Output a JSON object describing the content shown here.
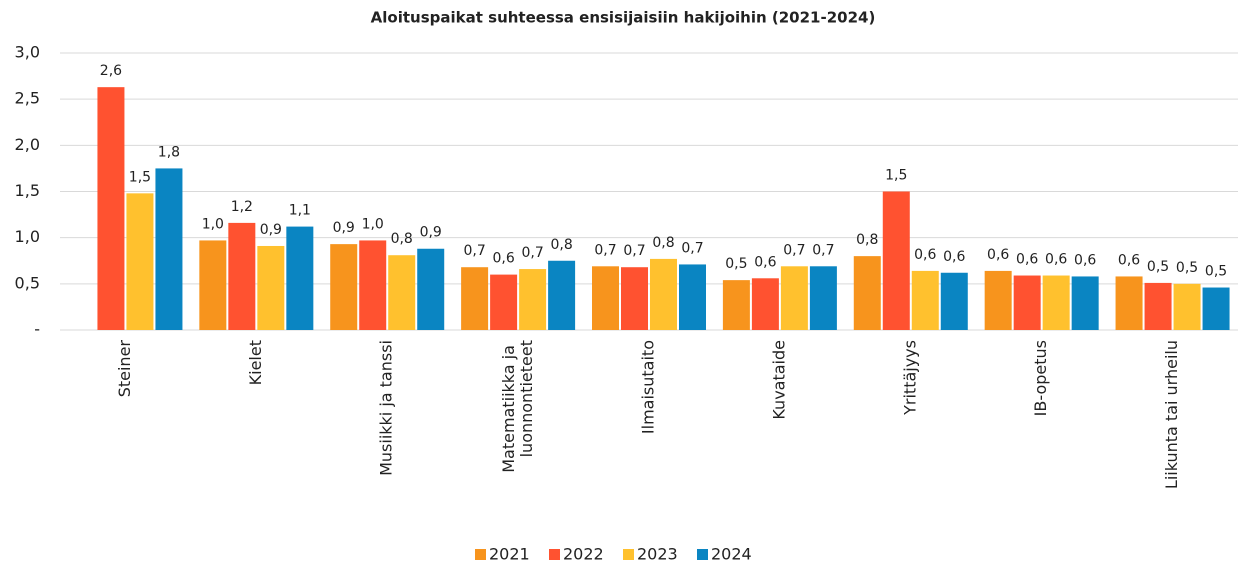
{
  "chart_data": {
    "type": "bar",
    "title": "Aloituspaikat suhteessa ensisijaisiin hakijoihin (2021-2024)",
    "categories": [
      "Steiner",
      "Kielet",
      "Musiikki ja tanssi",
      "Matematiikka ja luonnontieteet",
      "Ilmaisutaito",
      "Kuvataide",
      "Yrittäjyys",
      "IB-opetus",
      "Liikunta tai urheilu"
    ],
    "series": [
      {
        "name": "2021",
        "color": "#f7941d",
        "values": [
          null,
          0.97,
          0.93,
          0.68,
          0.69,
          0.54,
          0.8,
          0.64,
          0.58
        ],
        "value_labels": [
          null,
          "1,0",
          "0,9",
          "0,7",
          "0,7",
          "0,5",
          "0,8",
          "0,6",
          "0,6"
        ]
      },
      {
        "name": "2022",
        "color": "#ff5230",
        "values": [
          2.63,
          1.16,
          0.97,
          0.6,
          0.68,
          0.56,
          1.5,
          0.59,
          0.51
        ],
        "value_labels": [
          "2,6",
          "1,2",
          "1,0",
          "0,6",
          "0,7",
          "0,6",
          "1,5",
          "0,6",
          "0,5"
        ]
      },
      {
        "name": "2023",
        "color": "#ffc12e",
        "values": [
          1.48,
          0.91,
          0.81,
          0.66,
          0.77,
          0.69,
          0.64,
          0.59,
          0.5
        ],
        "value_labels": [
          "1,5",
          "0,9",
          "0,8",
          "0,7",
          "0,8",
          "0,7",
          "0,6",
          "0,6",
          "0,5"
        ]
      },
      {
        "name": "2024",
        "color": "#0a85c2",
        "values": [
          1.75,
          1.12,
          0.88,
          0.75,
          0.71,
          0.69,
          0.62,
          0.58,
          0.46
        ],
        "value_labels": [
          "1,8",
          "1,1",
          "0,9",
          "0,8",
          "0,7",
          "0,7",
          "0,6",
          "0,6",
          "0,5"
        ]
      }
    ],
    "ylim": [
      0,
      3
    ],
    "yticks": [
      {
        "value": 0,
        "label": "-"
      },
      {
        "value": 0.5,
        "label": "0,5"
      },
      {
        "value": 1,
        "label": "1,0"
      },
      {
        "value": 1.5,
        "label": "1,5"
      },
      {
        "value": 2,
        "label": "2,0"
      },
      {
        "value": 2.5,
        "label": "2,5"
      },
      {
        "value": 3,
        "label": "3,0"
      }
    ],
    "grid": true,
    "legend": "bottom"
  }
}
